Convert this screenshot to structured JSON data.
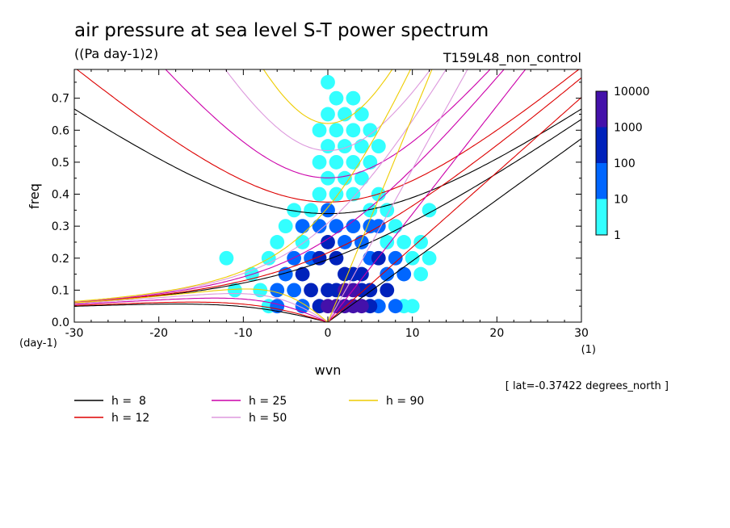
{
  "title": "air pressure at sea level S-T power spectrum",
  "units": "((Pa day-1)2)",
  "run_label": "T159L48_non_control",
  "annotation": "[ lat=-0.37422 degrees_north ]",
  "chart_data": {
    "type": "heatmap",
    "xlabel": "wvn",
    "ylabel": "freq",
    "x_unit_label": "(1)",
    "y_unit_label": "(day-1)",
    "xlim": [
      -30,
      30
    ],
    "ylim": [
      0.0,
      0.79
    ],
    "x_ticks": [
      -30,
      -20,
      -10,
      0,
      10,
      20,
      30
    ],
    "x_tick_labels": [
      "-30",
      "-20",
      "-10",
      "0",
      "10",
      "20",
      "30"
    ],
    "y_ticks": [
      0.0,
      0.1,
      0.2,
      0.3,
      0.4,
      0.5,
      0.6,
      0.7
    ],
    "y_tick_labels": [
      "0.0",
      "0.1",
      "0.2",
      "0.3",
      "0.4",
      "0.5",
      "0.6",
      "0.7"
    ],
    "grid": false,
    "colorbar": {
      "levels": [
        1,
        10,
        100,
        1000,
        10000
      ],
      "labels": [
        "1",
        "10",
        "100",
        "1000",
        "10000"
      ],
      "colors": [
        "#33ffff",
        "#0066ff",
        "#0022bb",
        "#4411aa"
      ]
    },
    "contour_cells": [
      {
        "x": 0,
        "y": 0.05,
        "level": 3
      },
      {
        "x": 1,
        "y": 0.05,
        "level": 3
      },
      {
        "x": 2,
        "y": 0.05,
        "level": 3
      },
      {
        "x": 3,
        "y": 0.05,
        "level": 3
      },
      {
        "x": 4,
        "y": 0.05,
        "level": 3
      },
      {
        "x": 2,
        "y": 0.1,
        "level": 3
      },
      {
        "x": 3,
        "y": 0.1,
        "level": 3
      },
      {
        "x": -1,
        "y": 0.05,
        "level": 2
      },
      {
        "x": 5,
        "y": 0.05,
        "level": 2
      },
      {
        "x": 1,
        "y": 0.1,
        "level": 2
      },
      {
        "x": 4,
        "y": 0.1,
        "level": 2
      },
      {
        "x": 5,
        "y": 0.1,
        "level": 2
      },
      {
        "x": 2,
        "y": 0.15,
        "level": 2
      },
      {
        "x": 3,
        "y": 0.15,
        "level": 2
      },
      {
        "x": 4,
        "y": 0.15,
        "level": 2
      },
      {
        "x": 0,
        "y": 0.1,
        "level": 2
      },
      {
        "x": -2,
        "y": 0.1,
        "level": 2
      },
      {
        "x": -3,
        "y": 0.15,
        "level": 2
      },
      {
        "x": 6,
        "y": 0.2,
        "level": 2
      },
      {
        "x": 7,
        "y": 0.1,
        "level": 2
      },
      {
        "x": -1,
        "y": 0.2,
        "level": 2
      },
      {
        "x": 0,
        "y": 0.25,
        "level": 2
      },
      {
        "x": 1,
        "y": 0.2,
        "level": 2
      },
      {
        "x": -4,
        "y": 0.1,
        "level": 1
      },
      {
        "x": -5,
        "y": 0.15,
        "level": 1
      },
      {
        "x": -6,
        "y": 0.05,
        "level": 1
      },
      {
        "x": -3,
        "y": 0.05,
        "level": 1
      },
      {
        "x": 6,
        "y": 0.05,
        "level": 1
      },
      {
        "x": 7,
        "y": 0.15,
        "level": 1
      },
      {
        "x": 8,
        "y": 0.05,
        "level": 1
      },
      {
        "x": 5,
        "y": 0.2,
        "level": 1
      },
      {
        "x": 4,
        "y": 0.25,
        "level": 1
      },
      {
        "x": 2,
        "y": 0.25,
        "level": 1
      },
      {
        "x": 3,
        "y": 0.3,
        "level": 1
      },
      {
        "x": 1,
        "y": 0.3,
        "level": 1
      },
      {
        "x": -1,
        "y": 0.3,
        "level": 1
      },
      {
        "x": -2,
        "y": 0.2,
        "level": 1
      },
      {
        "x": -4,
        "y": 0.2,
        "level": 1
      },
      {
        "x": 5,
        "y": 0.3,
        "level": 1
      },
      {
        "x": 6,
        "y": 0.3,
        "level": 1
      },
      {
        "x": 8,
        "y": 0.2,
        "level": 1
      },
      {
        "x": 9,
        "y": 0.15,
        "level": 1
      },
      {
        "x": -3,
        "y": 0.3,
        "level": 1
      },
      {
        "x": 0,
        "y": 0.35,
        "level": 1
      },
      {
        "x": -6,
        "y": 0.1,
        "level": 1
      },
      {
        "x": -7,
        "y": 0.05,
        "level": 0
      },
      {
        "x": -8,
        "y": 0.1,
        "level": 0
      },
      {
        "x": -9,
        "y": 0.15,
        "level": 0
      },
      {
        "x": -12,
        "y": 0.2,
        "level": 0
      },
      {
        "x": -11,
        "y": 0.1,
        "level": 0
      },
      {
        "x": -7,
        "y": 0.2,
        "level": 0
      },
      {
        "x": -6,
        "y": 0.25,
        "level": 0
      },
      {
        "x": -5,
        "y": 0.3,
        "level": 0
      },
      {
        "x": 7,
        "y": 0.25,
        "level": 0
      },
      {
        "x": 8,
        "y": 0.3,
        "level": 0
      },
      {
        "x": 9,
        "y": 0.25,
        "level": 0
      },
      {
        "x": 10,
        "y": 0.2,
        "level": 0
      },
      {
        "x": 11,
        "y": 0.15,
        "level": 0
      },
      {
        "x": 10,
        "y": 0.05,
        "level": 0
      },
      {
        "x": 12,
        "y": 0.2,
        "level": 0
      },
      {
        "x": 9,
        "y": 0.05,
        "level": 0
      },
      {
        "x": 7,
        "y": 0.35,
        "level": 0
      },
      {
        "x": 5,
        "y": 0.35,
        "level": 0
      },
      {
        "x": 3,
        "y": 0.4,
        "level": 0
      },
      {
        "x": 1,
        "y": 0.4,
        "level": 0
      },
      {
        "x": -1,
        "y": 0.4,
        "level": 0
      },
      {
        "x": -2,
        "y": 0.35,
        "level": 0
      },
      {
        "x": -4,
        "y": 0.35,
        "level": 0
      },
      {
        "x": 6,
        "y": 0.4,
        "level": 0
      },
      {
        "x": 4,
        "y": 0.45,
        "level": 0
      },
      {
        "x": 2,
        "y": 0.45,
        "level": 0
      },
      {
        "x": 0,
        "y": 0.45,
        "level": 0
      },
      {
        "x": 5,
        "y": 0.5,
        "level": 0
      },
      {
        "x": 3,
        "y": 0.5,
        "level": 0
      },
      {
        "x": 1,
        "y": 0.5,
        "level": 0
      },
      {
        "x": -1,
        "y": 0.5,
        "level": 0
      },
      {
        "x": 4,
        "y": 0.55,
        "level": 0
      },
      {
        "x": 2,
        "y": 0.55,
        "level": 0
      },
      {
        "x": 0,
        "y": 0.55,
        "level": 0
      },
      {
        "x": 6,
        "y": 0.55,
        "level": 0
      },
      {
        "x": 3,
        "y": 0.6,
        "level": 0
      },
      {
        "x": 1,
        "y": 0.6,
        "level": 0
      },
      {
        "x": 5,
        "y": 0.6,
        "level": 0
      },
      {
        "x": 2,
        "y": 0.65,
        "level": 0
      },
      {
        "x": 0,
        "y": 0.65,
        "level": 0
      },
      {
        "x": 4,
        "y": 0.65,
        "level": 0
      },
      {
        "x": 1,
        "y": 0.7,
        "level": 0
      },
      {
        "x": 3,
        "y": 0.7,
        "level": 0
      },
      {
        "x": 0,
        "y": 0.75,
        "level": 0
      },
      {
        "x": -1,
        "y": 0.6,
        "level": 0
      },
      {
        "x": -3,
        "y": 0.25,
        "level": 0
      },
      {
        "x": 11,
        "y": 0.25,
        "level": 0
      },
      {
        "x": 12,
        "y": 0.35,
        "level": 0
      }
    ],
    "equivalent_depths": [
      {
        "name": "h =  8",
        "h": 8,
        "color": "#000000"
      },
      {
        "name": "h = 12",
        "h": 12,
        "color": "#dd0000"
      },
      {
        "name": "h = 25",
        "h": 25,
        "color": "#cc00aa"
      },
      {
        "name": "h = 50",
        "h": 50,
        "color": "#dd99dd"
      },
      {
        "name": "h = 90",
        "h": 90,
        "color": "#eecc00"
      }
    ]
  }
}
